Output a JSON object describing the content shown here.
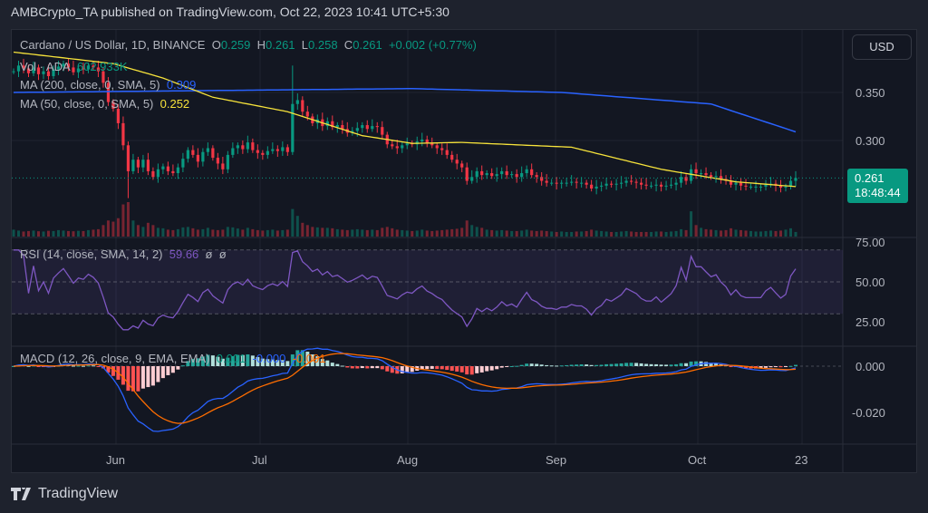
{
  "header": {
    "published": "AMBCrypto_TA published on TradingView.com, Oct 22, 2023 10:41 UTC+5:30"
  },
  "legend": {
    "symbol": "Cardano / US Dollar, 1D, BINANCE",
    "o_label": "O",
    "o": "0.259",
    "h_label": "H",
    "h": "0.261",
    "l_label": "L",
    "l": "0.258",
    "c_label": "C",
    "c": "0.261",
    "change": "+0.002 (+0.77%)",
    "vol_label": "Vol · ADA",
    "vol": "602.933K",
    "ma200_label": "MA (200, close, 0, SMA, 5)",
    "ma200": "0.309",
    "ma50_label": "MA (50, close, 0, SMA, 5)",
    "ma50": "0.252",
    "rsi_label": "RSI (14, close, SMA, 14, 2)",
    "rsi": "59.66",
    "rsi_na1": "ø",
    "rsi_na2": "ø",
    "macd_label": "MACD (12, 26, close, 9, EMA, EMA)",
    "macd_hist": "0.001",
    "macd": "-0.000",
    "macd_signal": "-0.001"
  },
  "price_axis": {
    "currency_button": "USD",
    "ticks": [
      "0.350",
      "0.300"
    ],
    "last_price": "0.261",
    "countdown": "18:48:44"
  },
  "rsi_axis": {
    "ticks": [
      "75.00",
      "50.00",
      "25.00"
    ]
  },
  "macd_axis": {
    "ticks": [
      "0.000",
      "-0.020"
    ]
  },
  "time_axis": {
    "ticks": [
      "Jun",
      "Jul",
      "Aug",
      "Sep",
      "Oct",
      "23"
    ]
  },
  "footer": {
    "logo": "TradingView"
  },
  "colors": {
    "up": "#089981",
    "down": "#f23645",
    "ma200": "#2962ff",
    "ma50": "#f7e33b",
    "rsi": "#7e57c2",
    "macd": "#2962ff",
    "signal": "#ff6d00"
  },
  "chart_data": {
    "type": "candlestick",
    "title": "Cardano / US Dollar, 1D, BINANCE",
    "start_date": "2023-05-18",
    "end_date": "2023-10-22",
    "ylim": [
      0.235,
      0.395
    ],
    "close": [
      0.372,
      0.378,
      0.375,
      0.37,
      0.376,
      0.369,
      0.372,
      0.367,
      0.374,
      0.377,
      0.38,
      0.376,
      0.371,
      0.375,
      0.374,
      0.378,
      0.376,
      0.372,
      0.36,
      0.34,
      0.333,
      0.318,
      0.295,
      0.268,
      0.28,
      0.272,
      0.28,
      0.268,
      0.262,
      0.27,
      0.273,
      0.268,
      0.266,
      0.272,
      0.281,
      0.29,
      0.285,
      0.278,
      0.288,
      0.292,
      0.282,
      0.276,
      0.27,
      0.285,
      0.292,
      0.295,
      0.291,
      0.298,
      0.29,
      0.287,
      0.285,
      0.289,
      0.291,
      0.289,
      0.293,
      0.288,
      0.338,
      0.342,
      0.33,
      0.325,
      0.318,
      0.322,
      0.315,
      0.32,
      0.314,
      0.316,
      0.312,
      0.308,
      0.31,
      0.313,
      0.316,
      0.312,
      0.315,
      0.314,
      0.306,
      0.296,
      0.294,
      0.292,
      0.295,
      0.297,
      0.296,
      0.299,
      0.301,
      0.297,
      0.295,
      0.292,
      0.29,
      0.285,
      0.28,
      0.276,
      0.272,
      0.258,
      0.262,
      0.268,
      0.264,
      0.266,
      0.263,
      0.265,
      0.268,
      0.264,
      0.265,
      0.262,
      0.266,
      0.27,
      0.264,
      0.262,
      0.258,
      0.256,
      0.256,
      0.255,
      0.256,
      0.256,
      0.257,
      0.256,
      0.256,
      0.254,
      0.25,
      0.252,
      0.253,
      0.255,
      0.254,
      0.255,
      0.256,
      0.258,
      0.257,
      0.256,
      0.254,
      0.253,
      0.253,
      0.254,
      0.252,
      0.253,
      0.254,
      0.256,
      0.262,
      0.258,
      0.27,
      0.266,
      0.266,
      0.264,
      0.262,
      0.263,
      0.26,
      0.258,
      0.254,
      0.256,
      0.253,
      0.252,
      0.252,
      0.252,
      0.252,
      0.254,
      0.255,
      0.253,
      0.251,
      0.252,
      0.258,
      0.261
    ],
    "volume_m": [
      300,
      260,
      220,
      240,
      260,
      230,
      220,
      250,
      240,
      280,
      260,
      240,
      230,
      250,
      240,
      280,
      300,
      320,
      500,
      700,
      650,
      800,
      1400,
      1500,
      700,
      500,
      420,
      600,
      500,
      380,
      360,
      300,
      280,
      320,
      400,
      420,
      360,
      300,
      320,
      380,
      300,
      280,
      300,
      420,
      400,
      350,
      300,
      380,
      320,
      280,
      260,
      280,
      300,
      260,
      280,
      300,
      1200,
      900,
      600,
      500,
      420,
      400,
      380,
      380,
      360,
      320,
      300,
      280,
      300,
      320,
      300,
      280,
      300,
      280,
      380,
      420,
      360,
      300,
      280,
      260,
      240,
      260,
      300,
      260,
      240,
      260,
      280,
      300,
      320,
      340,
      380,
      700,
      500,
      420,
      380,
      300,
      280,
      260,
      280,
      260,
      240,
      240,
      260,
      300,
      260,
      240,
      260,
      240,
      220,
      200,
      220,
      200,
      200,
      220,
      220,
      240,
      300,
      260,
      240,
      220,
      200,
      200,
      220,
      240,
      220,
      200,
      200,
      200,
      200,
      220,
      220,
      200,
      220,
      240,
      320,
      280,
      1100,
      500,
      380,
      320,
      300,
      280,
      260,
      280,
      360,
      300,
      280,
      260,
      240,
      220,
      220,
      240,
      260,
      240,
      260,
      300,
      360,
      200
    ],
    "ma200_points": [
      [
        0,
        0.35
      ],
      [
        60,
        0.353
      ],
      [
        80,
        0.354
      ],
      [
        110,
        0.35
      ],
      [
        140,
        0.338
      ],
      [
        157,
        0.309
      ]
    ],
    "ma50_points": [
      [
        0,
        0.392
      ],
      [
        20,
        0.38
      ],
      [
        30,
        0.365
      ],
      [
        40,
        0.345
      ],
      [
        55,
        0.33
      ],
      [
        70,
        0.305
      ],
      [
        80,
        0.297
      ],
      [
        90,
        0.298
      ],
      [
        112,
        0.293
      ],
      [
        130,
        0.27
      ],
      [
        145,
        0.257
      ],
      [
        157,
        0.252
      ]
    ]
  }
}
